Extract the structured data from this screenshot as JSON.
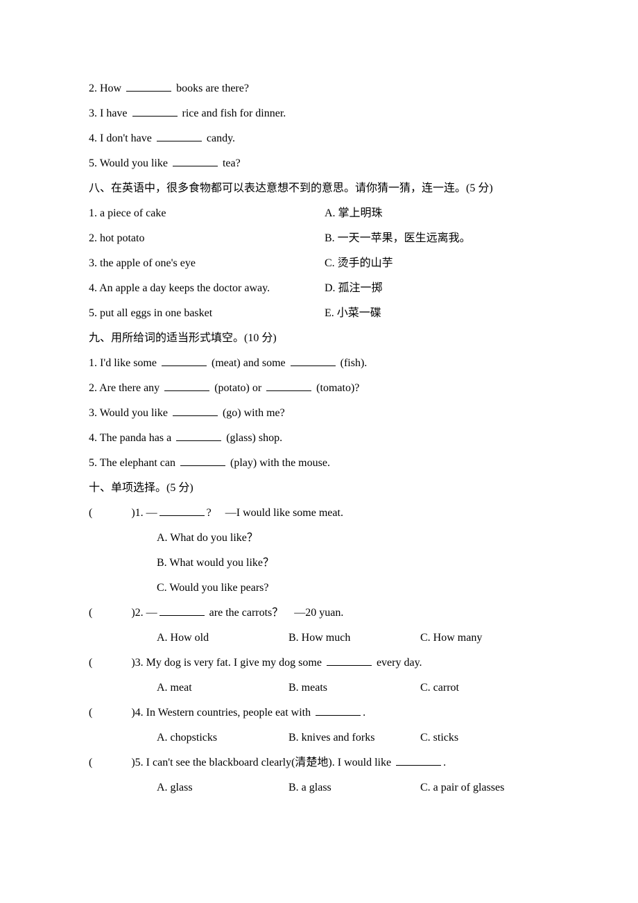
{
  "fill": {
    "q2": "2. How ",
    "q2_after": " books are there?",
    "q3": "3. I have ",
    "q3_after": " rice and fish for dinner.",
    "q4": "4. I don't have ",
    "q4_after": " candy.",
    "q5": "5. Would you like ",
    "q5_after": " tea?"
  },
  "section8": {
    "title": "八、在英语中，很多食物都可以表达意想不到的意思。请你猜一猜，连一连。(5 分)",
    "items": [
      {
        "left": "1. a piece of cake",
        "right": "A.  掌上明珠"
      },
      {
        "left": "2. hot potato",
        "right": "B.  一天一苹果，医生远离我。"
      },
      {
        "left": "3. the apple of one's eye",
        "right": "C.  烫手的山芋"
      },
      {
        "left": "4. An apple a day keeps the doctor away.",
        "right": "D.  孤注一掷"
      },
      {
        "left": "5. put all eggs in one basket",
        "right": "E.  小菜一碟"
      }
    ]
  },
  "section9": {
    "title": "九、用所给词的适当形式填空。(10 分)",
    "q1_a": "1. I'd like some ",
    "q1_b": " (meat) and some ",
    "q1_c": " (fish).",
    "q2_a": "2. Are there any ",
    "q2_b": " (potato) or ",
    "q2_c": " (tomato)?",
    "q3_a": "3. Would you like ",
    "q3_b": " (go) with me?",
    "q4_a": "4. The panda has a ",
    "q4_b": " (glass) shop.",
    "q5_a": "5. The elephant can ",
    "q5_b": " (play) with the mouse."
  },
  "section10": {
    "title": "十、单项选择。(5 分)",
    "paren_open": "(",
    "paren_close": ")",
    "q1": {
      "stem_a": "1. —",
      "stem_b": "?　  —I would like some meat.",
      "a": "A. What do you like？",
      "b": "B. What would you like？",
      "c": "C. Would you like pears?"
    },
    "q2": {
      "stem_a": "2. —",
      "stem_b": " are the carrots？　—20 yuan.",
      "a": "A. How old",
      "b": "B. How much",
      "c": "C. How many"
    },
    "q3": {
      "stem_a": "3. My dog is very fat. I give my dog some ",
      "stem_b": " every day.",
      "a": "A. meat",
      "b": "B. meats",
      "c": "C. carrot"
    },
    "q4": {
      "stem_a": "4. In Western countries, people eat with ",
      "stem_b": ".",
      "a": "A. chopsticks",
      "b": "B. knives and forks",
      "c": "C. sticks"
    },
    "q5": {
      "stem_a": "5. I can't see the blackboard clearly(清楚地). I would like ",
      "stem_b": ".",
      "a": "A. glass",
      "b": "B. a glass",
      "c": "C. a pair of glasses"
    }
  }
}
